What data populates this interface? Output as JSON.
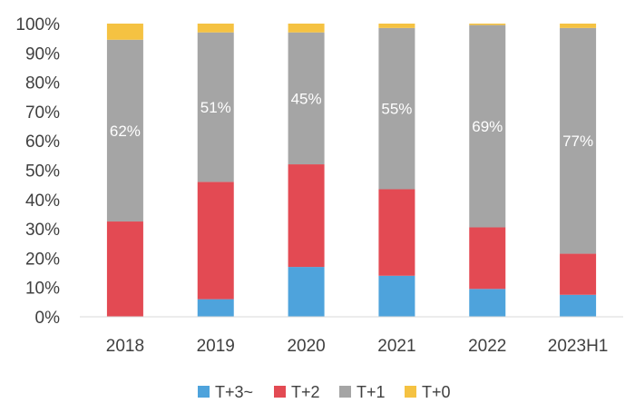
{
  "chart_data": {
    "type": "bar",
    "stacked": true,
    "percent": true,
    "title": "",
    "xlabel": "",
    "ylabel": "",
    "ylim": [
      0,
      100
    ],
    "yticks": [
      "0%",
      "10%",
      "20%",
      "30%",
      "40%",
      "50%",
      "60%",
      "70%",
      "80%",
      "90%",
      "100%"
    ],
    "categories": [
      "2018",
      "2019",
      "2020",
      "2021",
      "2022",
      "2023H1"
    ],
    "series": [
      {
        "name": "T+3~",
        "color": "#4ea3dc",
        "values": [
          0,
          6,
          17,
          14,
          9.5,
          7.5
        ]
      },
      {
        "name": "T+2",
        "color": "#e34a53",
        "values": [
          32.5,
          40,
          35,
          29.5,
          21,
          14
        ]
      },
      {
        "name": "T+1",
        "color": "#a5a5a5",
        "values": [
          62,
          51,
          45,
          55,
          69,
          77
        ]
      },
      {
        "name": "T+0",
        "color": "#f5c242",
        "values": [
          5.5,
          3,
          3,
          1.5,
          0.5,
          1.5
        ]
      }
    ],
    "data_labels": [
      {
        "series": "T+1",
        "labels": [
          "62%",
          "51%",
          "45%",
          "55%",
          "69%",
          "77%"
        ]
      }
    ],
    "legend": {
      "position": "bottom",
      "entries": [
        "T+3~",
        "T+2",
        "T+1",
        "T+0"
      ]
    },
    "grid": false
  }
}
